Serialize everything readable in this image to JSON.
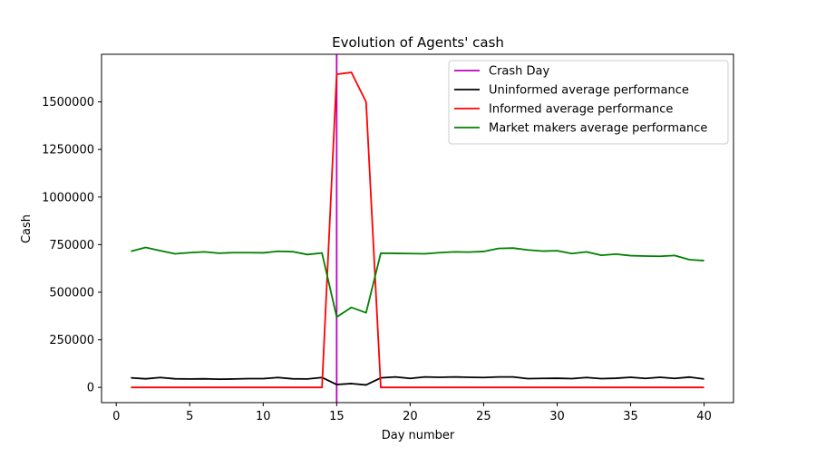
{
  "chart_data": {
    "type": "line",
    "title": "Evolution of Agents' cash",
    "xlabel": "Day number",
    "ylabel": "Cash",
    "xlim": [
      -1,
      42
    ],
    "ylim": [
      -80000,
      1750000
    ],
    "x_ticks": [
      0,
      5,
      10,
      15,
      20,
      25,
      30,
      35,
      40
    ],
    "y_ticks": [
      0,
      250000,
      500000,
      750000,
      1000000,
      1250000,
      1500000
    ],
    "grid": false,
    "legend_position": "upper right",
    "vlines": [
      {
        "name": "Crash Day",
        "x": 15,
        "color": "#bf00bf"
      }
    ],
    "x": [
      1,
      2,
      3,
      4,
      5,
      6,
      7,
      8,
      9,
      10,
      11,
      12,
      13,
      14,
      15,
      16,
      17,
      18,
      19,
      20,
      21,
      22,
      23,
      24,
      25,
      26,
      27,
      28,
      29,
      30,
      31,
      32,
      33,
      34,
      35,
      36,
      37,
      38,
      39,
      40
    ],
    "series": [
      {
        "name": "Uninformed average performance",
        "color": "#000000",
        "values": [
          50000,
          45000,
          52000,
          45000,
          44000,
          45000,
          43000,
          44000,
          46000,
          46000,
          52000,
          45000,
          44000,
          52000,
          15000,
          20000,
          13000,
          50000,
          55000,
          47000,
          55000,
          53000,
          55000,
          53000,
          52000,
          55000,
          55000,
          46000,
          47000,
          48000,
          46000,
          52000,
          46000,
          48000,
          53000,
          47000,
          53000,
          47000,
          54000,
          44000
        ]
      },
      {
        "name": "Informed average performance",
        "color": "#ff0000",
        "values": [
          0,
          0,
          0,
          0,
          0,
          0,
          0,
          0,
          0,
          0,
          0,
          0,
          0,
          0,
          1645000,
          1655000,
          1500000,
          0,
          0,
          0,
          0,
          0,
          0,
          0,
          0,
          0,
          0,
          0,
          0,
          0,
          0,
          0,
          0,
          0,
          0,
          0,
          0,
          0,
          0,
          0
        ]
      },
      {
        "name": "Market makers average performance",
        "color": "#008000",
        "values": [
          715000,
          735000,
          718000,
          702000,
          708000,
          712000,
          705000,
          708000,
          708000,
          707000,
          715000,
          713000,
          698000,
          706000,
          370000,
          420000,
          392000,
          705000,
          704000,
          703000,
          702000,
          708000,
          712000,
          711000,
          714000,
          730000,
          732000,
          722000,
          716000,
          718000,
          703000,
          712000,
          694000,
          700000,
          692000,
          690000,
          689000,
          693000,
          671000,
          666000
        ]
      }
    ]
  }
}
